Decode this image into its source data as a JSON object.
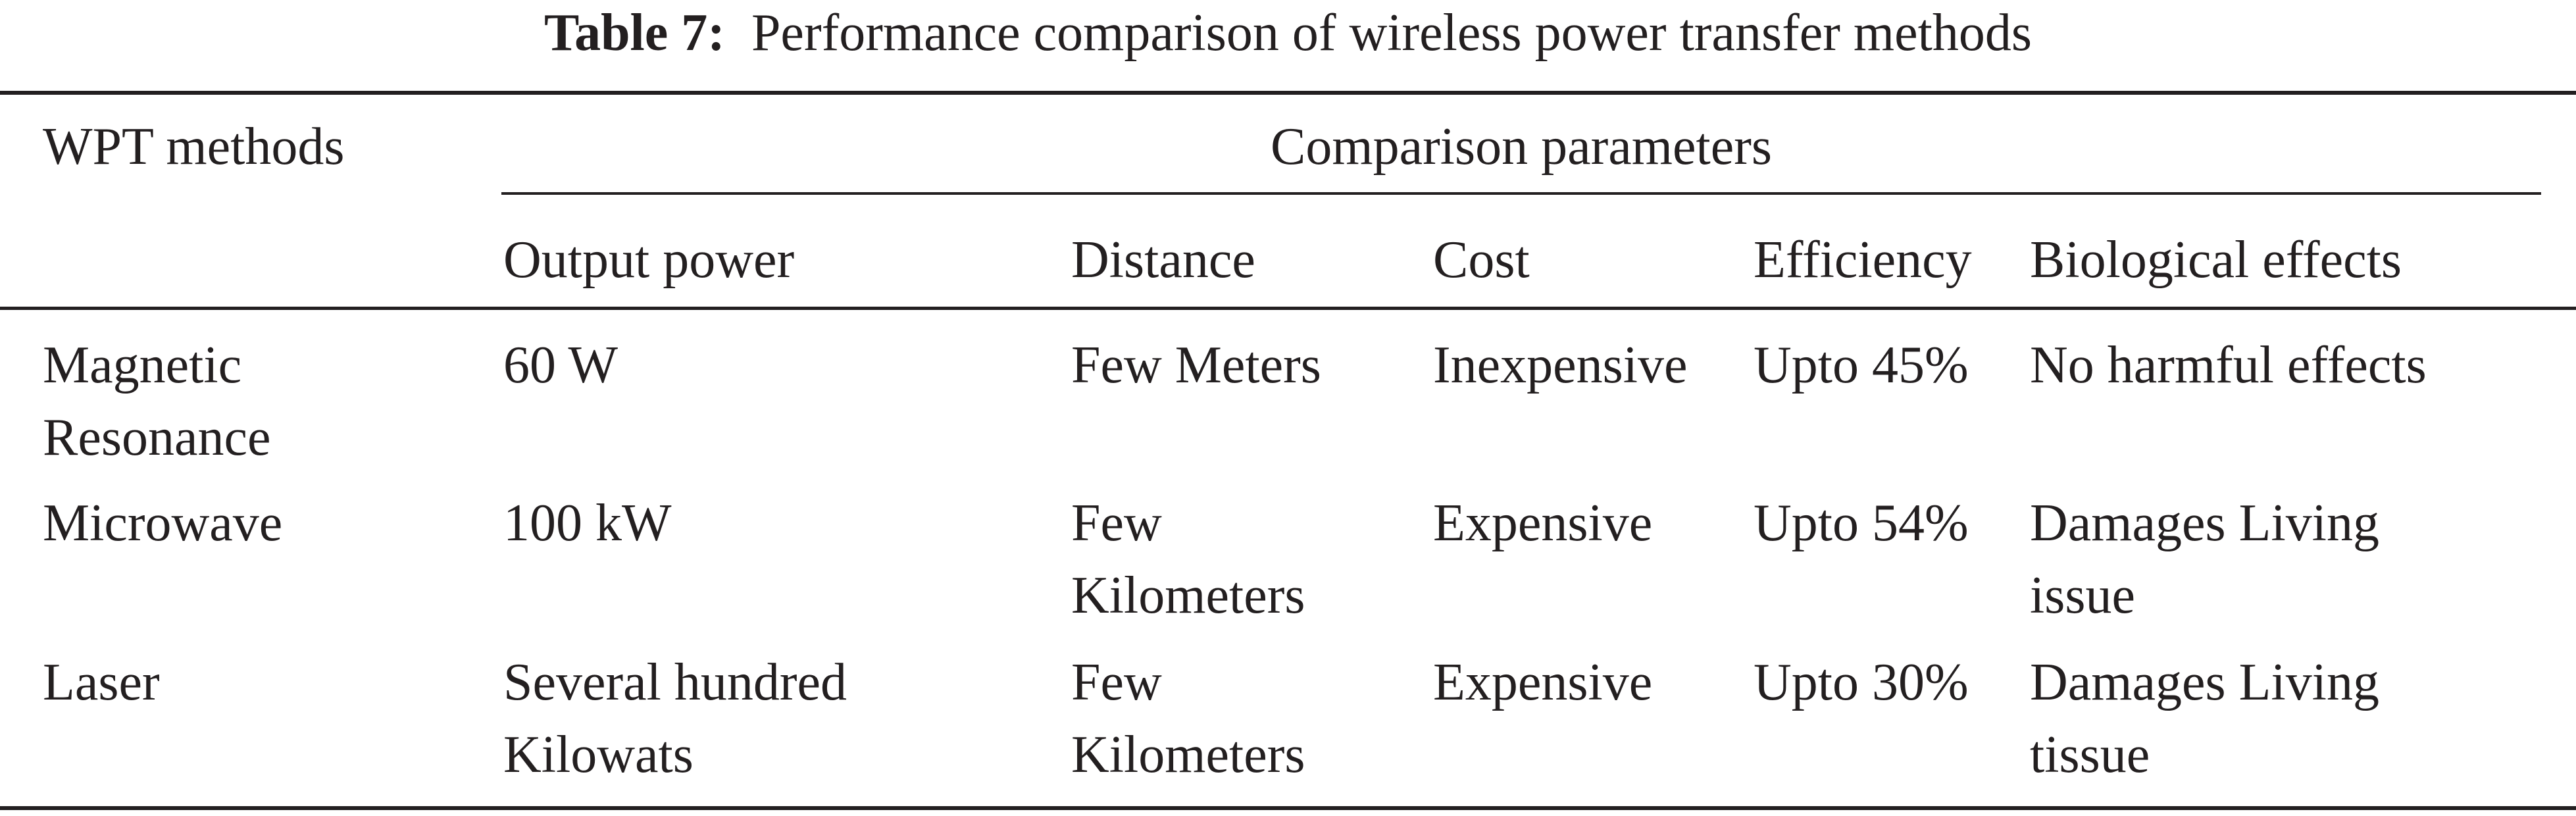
{
  "caption": {
    "label": "Table 7:",
    "text": "Performance comparison of wireless power transfer methods"
  },
  "header": {
    "row_label": "WPT methods",
    "group_label": "Comparison parameters",
    "columns": [
      "Output power",
      "Distance",
      "Cost",
      "Efficiency",
      "Biological effects"
    ]
  },
  "rows": [
    {
      "method": [
        "Magnetic",
        "Resonance"
      ],
      "output_power": [
        "60 W"
      ],
      "distance": [
        "Few Meters"
      ],
      "cost": "Inexpensive",
      "efficiency": "Upto 45%",
      "biological_effects": [
        "No harmful effects"
      ]
    },
    {
      "method": [
        "Microwave"
      ],
      "output_power": [
        "100 kW"
      ],
      "distance": [
        "Few",
        "Kilometers"
      ],
      "cost": "Expensive",
      "efficiency": "Upto 54%",
      "biological_effects": [
        "Damages Living",
        "issue"
      ]
    },
    {
      "method": [
        "Laser"
      ],
      "output_power": [
        "Several hundred",
        "Kilowats"
      ],
      "distance": [
        "Few",
        "Kilometers"
      ],
      "cost": "Expensive",
      "efficiency": "Upto 30%",
      "biological_effects": [
        "Damages Living",
        "tissue"
      ]
    }
  ]
}
